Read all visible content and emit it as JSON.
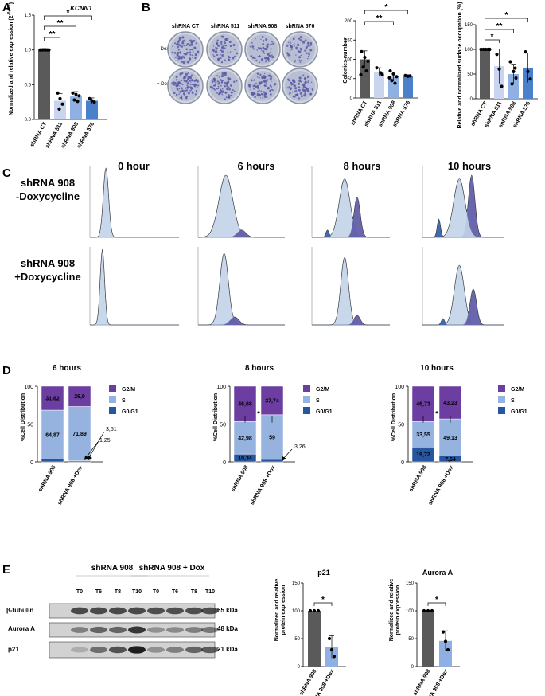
{
  "panels": {
    "A": "A",
    "B": "B",
    "C": "C",
    "D": "D",
    "E": "E"
  },
  "panelA": {
    "title": "KCNN1",
    "ylabel": "Normalized and relative expression (2",
    "ylabel_sup": "-ΔΔCt",
    "ylabel_end": ")",
    "sig": [
      "**",
      "**",
      "*"
    ]
  },
  "panelB": {
    "plate_cols": [
      "shRNA CT",
      "shRNA 511",
      "shRNA 908",
      "shRNA 576"
    ],
    "row_minus": "- Doxycycline",
    "row_plus": "+ Doxycycline",
    "colonies_ylabel": "Colonies number",
    "occupation_ylabel": "Relative and normalized surface occupation (%)",
    "sig_colonies": [
      "*",
      "**"
    ],
    "sig_occ": [
      "*",
      "**",
      "*"
    ]
  },
  "panelC": {
    "timepoints": [
      "0 hour",
      "6 hours",
      "8 hours",
      "10 hours"
    ],
    "row1_line1": "shRNA 908",
    "row1_line2": "-Doxycycline",
    "row2_line1": "shRNA 908",
    "row2_line2": "+Doxycycline"
  },
  "panelD": {
    "ylabel": "%Cell Distribution",
    "legend": [
      "G2/M",
      "S",
      "G0/G1"
    ],
    "titles": [
      "6 hours",
      "8 hours",
      "10 hours"
    ],
    "xcats": [
      "shRNA 908",
      "shRNA 908 +Dox"
    ],
    "d6": {
      "g2m": [
        "31,62",
        "26,9"
      ],
      "s": [
        "64,87",
        "71,89"
      ],
      "g0": [
        "3,51",
        "1,25"
      ]
    },
    "d8": {
      "g2m": [
        "46,68",
        "37,74"
      ],
      "s": [
        "42,98",
        "59"
      ],
      "g0": [
        "10,34",
        "3,26"
      ]
    },
    "d10": {
      "g2m": [
        "46,73",
        "43,23"
      ],
      "s": [
        "33,55",
        "49,13"
      ],
      "g0": [
        "19,72",
        "7,64"
      ]
    },
    "sig": "*"
  },
  "panelE": {
    "group1": "shRNA 908",
    "group2": "shRNA 908 + Dox",
    "lanes": [
      "T0",
      "T6",
      "T8",
      "T10",
      "T0",
      "T6",
      "T8",
      "T10"
    ],
    "proteins": [
      "β-tubulin",
      "Aurora A",
      "p21"
    ],
    "kda": [
      "55 kDa",
      "48 kDa",
      "21 kDa"
    ],
    "p21_title": "p21",
    "aurora_title": "Aurora A",
    "ylabel1": "Normalized and relative",
    "ylabel2": "protein expression",
    "sig": "*"
  },
  "chart_data": [
    {
      "type": "bar",
      "title": "KCNN1",
      "categories": [
        "shRNA CT",
        "shRNA 511",
        "shRNA 908",
        "shRNA 576"
      ],
      "values": [
        1.0,
        0.27,
        0.33,
        0.27
      ],
      "ylim": [
        0,
        1.5
      ],
      "yticks": [
        0,
        0.5,
        1.0,
        1.5
      ],
      "ytick_labels": [
        "0.0",
        "0.5",
        "1.0",
        "1.5"
      ],
      "colors": [
        "#5a5a5a",
        "#c9d5ee",
        "#8fb0e3",
        "#4a7fc9"
      ]
    },
    {
      "type": "bar",
      "title": "Colonies number",
      "categories": [
        "shRNA CT",
        "shRNA 511",
        "shRNA 908",
        "shRNA 576"
      ],
      "values": [
        100,
        68,
        55,
        57
      ],
      "ylim": [
        0,
        200
      ],
      "yticks": [
        0,
        50,
        100,
        150,
        200
      ],
      "ytick_labels": [
        "0",
        "50",
        "100",
        "150",
        "200"
      ],
      "colors": [
        "#5a5a5a",
        "#c9d5ee",
        "#8fb0e3",
        "#4a7fc9"
      ]
    },
    {
      "type": "bar",
      "title": "Relative and normalized surface occupation (%)",
      "categories": [
        "shRNA CT",
        "shRNA 511",
        "shRNA 908",
        "shRNA 576"
      ],
      "values": [
        100,
        66,
        50,
        63
      ],
      "ylim": [
        0,
        150
      ],
      "yticks": [
        0,
        50,
        100,
        150
      ],
      "ytick_labels": [
        "0",
        "50",
        "100",
        "150"
      ],
      "colors": [
        "#5a5a5a",
        "#c9d5ee",
        "#8fb0e3",
        "#4a7fc9"
      ]
    },
    {
      "type": "bar",
      "title": "6 hours",
      "stacked": true,
      "categories": [
        "shRNA 908",
        "shRNA 908 +Dox"
      ],
      "series": [
        {
          "name": "G0/G1",
          "values": [
            3.51,
            1.25
          ]
        },
        {
          "name": "S",
          "values": [
            64.87,
            71.89
          ]
        },
        {
          "name": "G2/M",
          "values": [
            31.62,
            26.9
          ]
        }
      ],
      "ylim": [
        0,
        100
      ],
      "yticks": [
        0,
        50,
        100
      ]
    },
    {
      "type": "bar",
      "title": "8 hours",
      "stacked": true,
      "categories": [
        "shRNA 908",
        "shRNA 908 +Dox"
      ],
      "series": [
        {
          "name": "G0/G1",
          "values": [
            10.34,
            3.26
          ]
        },
        {
          "name": "S",
          "values": [
            42.98,
            59
          ]
        },
        {
          "name": "G2/M",
          "values": [
            46.68,
            37.74
          ]
        }
      ],
      "ylim": [
        0,
        100
      ],
      "yticks": [
        0,
        50,
        100
      ]
    },
    {
      "type": "bar",
      "title": "10 hours",
      "stacked": true,
      "categories": [
        "shRNA 908",
        "shRNA 908 +Dox"
      ],
      "series": [
        {
          "name": "G0/G1",
          "values": [
            19.72,
            7.64
          ]
        },
        {
          "name": "S",
          "values": [
            33.55,
            49.13
          ]
        },
        {
          "name": "G2/M",
          "values": [
            46.73,
            43.23
          ]
        }
      ],
      "ylim": [
        0,
        100
      ],
      "yticks": [
        0,
        50,
        100
      ]
    },
    {
      "type": "bar",
      "title": "p21",
      "categories": [
        "shRNA 908",
        "shRNA 908 +Dox"
      ],
      "values": [
        100,
        35
      ],
      "ylim": [
        0,
        150
      ],
      "yticks": [
        0,
        50,
        100,
        150
      ],
      "ytick_labels": [
        "0",
        "50",
        "100",
        "150"
      ],
      "colors": [
        "#5a5a5a",
        "#8fb0e3"
      ]
    },
    {
      "type": "bar",
      "title": "Aurora A",
      "categories": [
        "shRNA 908",
        "shRNA 908 +Dox"
      ],
      "values": [
        100,
        46
      ],
      "ylim": [
        0,
        150
      ],
      "yticks": [
        0,
        50,
        100,
        150
      ],
      "ytick_labels": [
        "0",
        "50",
        "100",
        "150"
      ],
      "colors": [
        "#5a5a5a",
        "#8fb0e3"
      ]
    }
  ]
}
